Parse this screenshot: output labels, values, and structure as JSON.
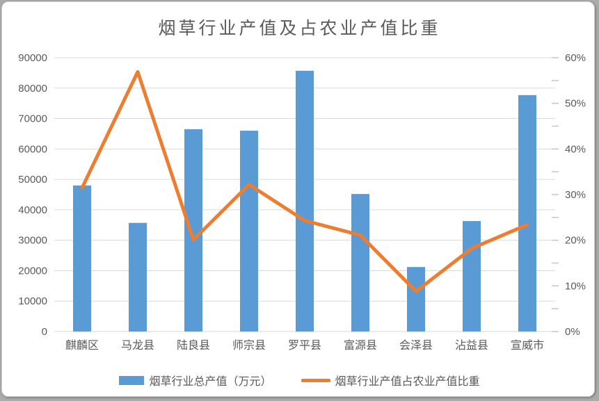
{
  "title": "烟草行业产值及占农业产值比重",
  "colors": {
    "bar": "#5B9BD5",
    "line": "#ED7D31",
    "gridline": "#D9D9D9",
    "tick": "#C6C6C6",
    "axis_text": "#595959",
    "frame_bg": "#FFFFFF",
    "frame_border": "#D2D2D2",
    "page_bg": "#ABABAB"
  },
  "legend": {
    "items": [
      {
        "label": "烟草行业总产值（万元）",
        "series_type": "bar",
        "color": "#5B9BD5"
      },
      {
        "label": "烟草行业产值占农业产值比重",
        "series_type": "line",
        "color": "#ED7D31"
      }
    ]
  },
  "chart_data": {
    "type": "bar+line combo",
    "title": "烟草行业产值及占农业产值比重",
    "categories": [
      "麒麟区",
      "马龙县",
      "陆良县",
      "师宗县",
      "罗平县",
      "富源县",
      "会泽县",
      "沾益县",
      "宣威市"
    ],
    "series": [
      {
        "name": "烟草行业总产值（万元）",
        "type": "bar",
        "axis": "left",
        "values": [
          48000,
          35700,
          66500,
          66000,
          85700,
          45200,
          21200,
          36300,
          77700
        ]
      },
      {
        "name": "烟草行业产值占农业产值比重",
        "type": "line",
        "axis": "right",
        "values": [
          31.5,
          56.9,
          20.1,
          32.2,
          24.3,
          21.1,
          8.8,
          18.2,
          23.4
        ],
        "unit": "%"
      }
    ],
    "left_axis": {
      "min": 0,
      "max": 90000,
      "step": 10000,
      "tick_labels": [
        "0",
        "10000",
        "20000",
        "30000",
        "40000",
        "50000",
        "60000",
        "70000",
        "80000",
        "90000"
      ]
    },
    "right_axis": {
      "min": 0,
      "max": 60,
      "step": 10,
      "minor_tick_step": 5,
      "tick_labels": [
        "0%",
        "10%",
        "20%",
        "30%",
        "40%",
        "50%",
        "60%"
      ]
    },
    "grid": true,
    "legend_position": "bottom"
  }
}
